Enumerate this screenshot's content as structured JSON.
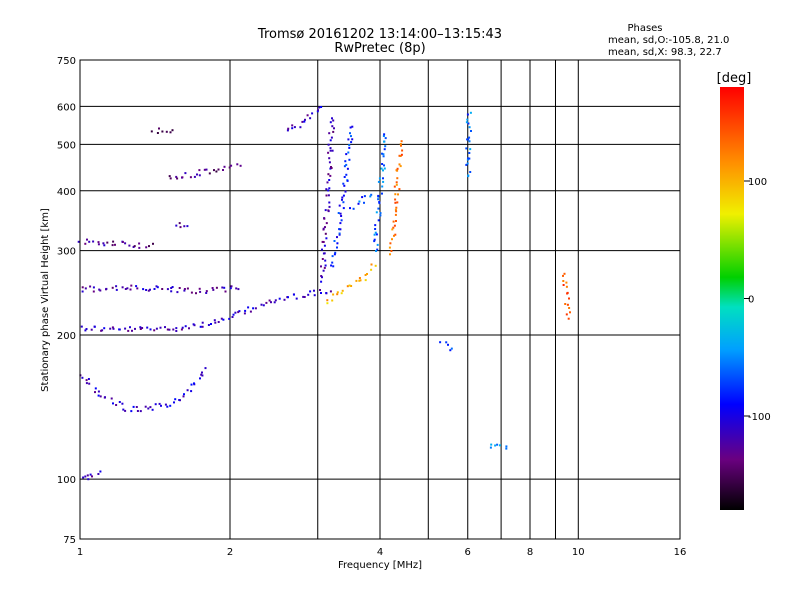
{
  "chart_data": {
    "type": "scatter",
    "title": "Tromsø 20161202 13:14:00–13:15:43",
    "subtitle": "RwPretec (8p)",
    "xlabel": "Frequency [MHz]",
    "ylabel": "Stationary phase Virtual Height [km]",
    "x_scale": "log",
    "y_scale": "log",
    "xlim": [
      1,
      16
    ],
    "ylim": [
      75,
      750
    ],
    "xticks": [
      1,
      2,
      4,
      6,
      8,
      10,
      16
    ],
    "xtick_labels": [
      "1",
      "2",
      "4",
      "6",
      "8",
      "10",
      "16"
    ],
    "x_minor_grid": [
      3,
      5,
      7,
      9
    ],
    "yticks": [
      75,
      100,
      200,
      300,
      400,
      500,
      600,
      750
    ],
    "ytick_labels": [
      "75",
      "100",
      "200",
      "300",
      "400",
      "500",
      "600",
      "750"
    ],
    "grid": true,
    "phase_info": {
      "header": "Phases",
      "line_o": "mean, sd,O:-105.8, 21.0",
      "line_x": "mean, sd,X:  98.3, 22.7"
    },
    "colorbar": {
      "label": "[deg]",
      "range": [
        -180,
        180
      ],
      "ticks": [
        100,
        0,
        -100
      ],
      "tick_labels": [
        "100",
        "0",
        "-100"
      ]
    },
    "echo_traces": [
      {
        "x": [
          1.0,
          1.2,
          1.5,
          1.8,
          2.0,
          2.2,
          2.5,
          2.8,
          3.0,
          3.2
        ],
        "y": [
          208,
          206,
          207,
          212,
          218,
          228,
          238,
          244,
          246,
          250
        ],
        "phase": -115
      },
      {
        "x": [
          1.0,
          1.2,
          1.5,
          1.8,
          2.1
        ],
        "y": [
          250,
          252,
          250,
          248,
          252
        ],
        "phase": -120
      },
      {
        "x": [
          1.0,
          1.2,
          1.4
        ],
        "y": [
          315,
          312,
          308
        ],
        "phase": -130
      },
      {
        "x": [
          1.0,
          1.1,
          1.25,
          1.4,
          1.55,
          1.7,
          1.8
        ],
        "y": [
          165,
          150,
          140,
          142,
          146,
          160,
          172
        ],
        "phase": -110
      },
      {
        "x": [
          1.0,
          1.1
        ],
        "y": [
          100,
          105
        ],
        "phase": -120
      },
      {
        "x": [
          1.5,
          1.7,
          1.9,
          2.1
        ],
        "y": [
          425,
          435,
          445,
          455
        ],
        "phase": -135
      },
      {
        "x": [
          1.4,
          1.55
        ],
        "y": [
          535,
          540
        ],
        "phase": -135
      },
      {
        "x": [
          1.55,
          1.65
        ],
        "y": [
          340,
          342
        ],
        "phase": -125
      },
      {
        "x": [
          2.6,
          2.8,
          3.1
        ],
        "y": [
          530,
          560,
          610
        ],
        "phase": -110
      },
      {
        "x": [
          3.05,
          3.1,
          3.15,
          3.2
        ],
        "y": [
          260,
          340,
          450,
          580
        ],
        "phase": -120
      },
      {
        "x": [
          3.2,
          3.35,
          3.5
        ],
        "y": [
          280,
          380,
          560
        ],
        "phase": -80
      },
      {
        "x": [
          3.5,
          3.7,
          3.9
        ],
        "y": [
          370,
          385,
          395
        ],
        "phase": -70
      },
      {
        "x": [
          3.1,
          3.3,
          3.5,
          3.7,
          3.9
        ],
        "y": [
          235,
          245,
          255,
          265,
          285
        ],
        "phase": 100
      },
      {
        "x": [
          3.9,
          4.0,
          4.1
        ],
        "y": [
          300,
          420,
          540
        ],
        "phase": -60
      },
      {
        "x": [
          4.2,
          4.3,
          4.4
        ],
        "y": [
          300,
          400,
          520
        ],
        "phase": 130
      },
      {
        "x": [
          6.0,
          6.0
        ],
        "y": [
          430,
          590
        ],
        "phase": -60
      },
      {
        "x": [
          6.6,
          7.0,
          7.3
        ],
        "y": [
          118,
          117,
          118
        ],
        "phase": -50
      },
      {
        "x": [
          5.3,
          5.6
        ],
        "y": [
          195,
          185
        ],
        "phase": -60
      },
      {
        "x": [
          9.3,
          9.4,
          9.5
        ],
        "y": [
          270,
          250,
          215
        ],
        "phase": 140
      }
    ]
  }
}
